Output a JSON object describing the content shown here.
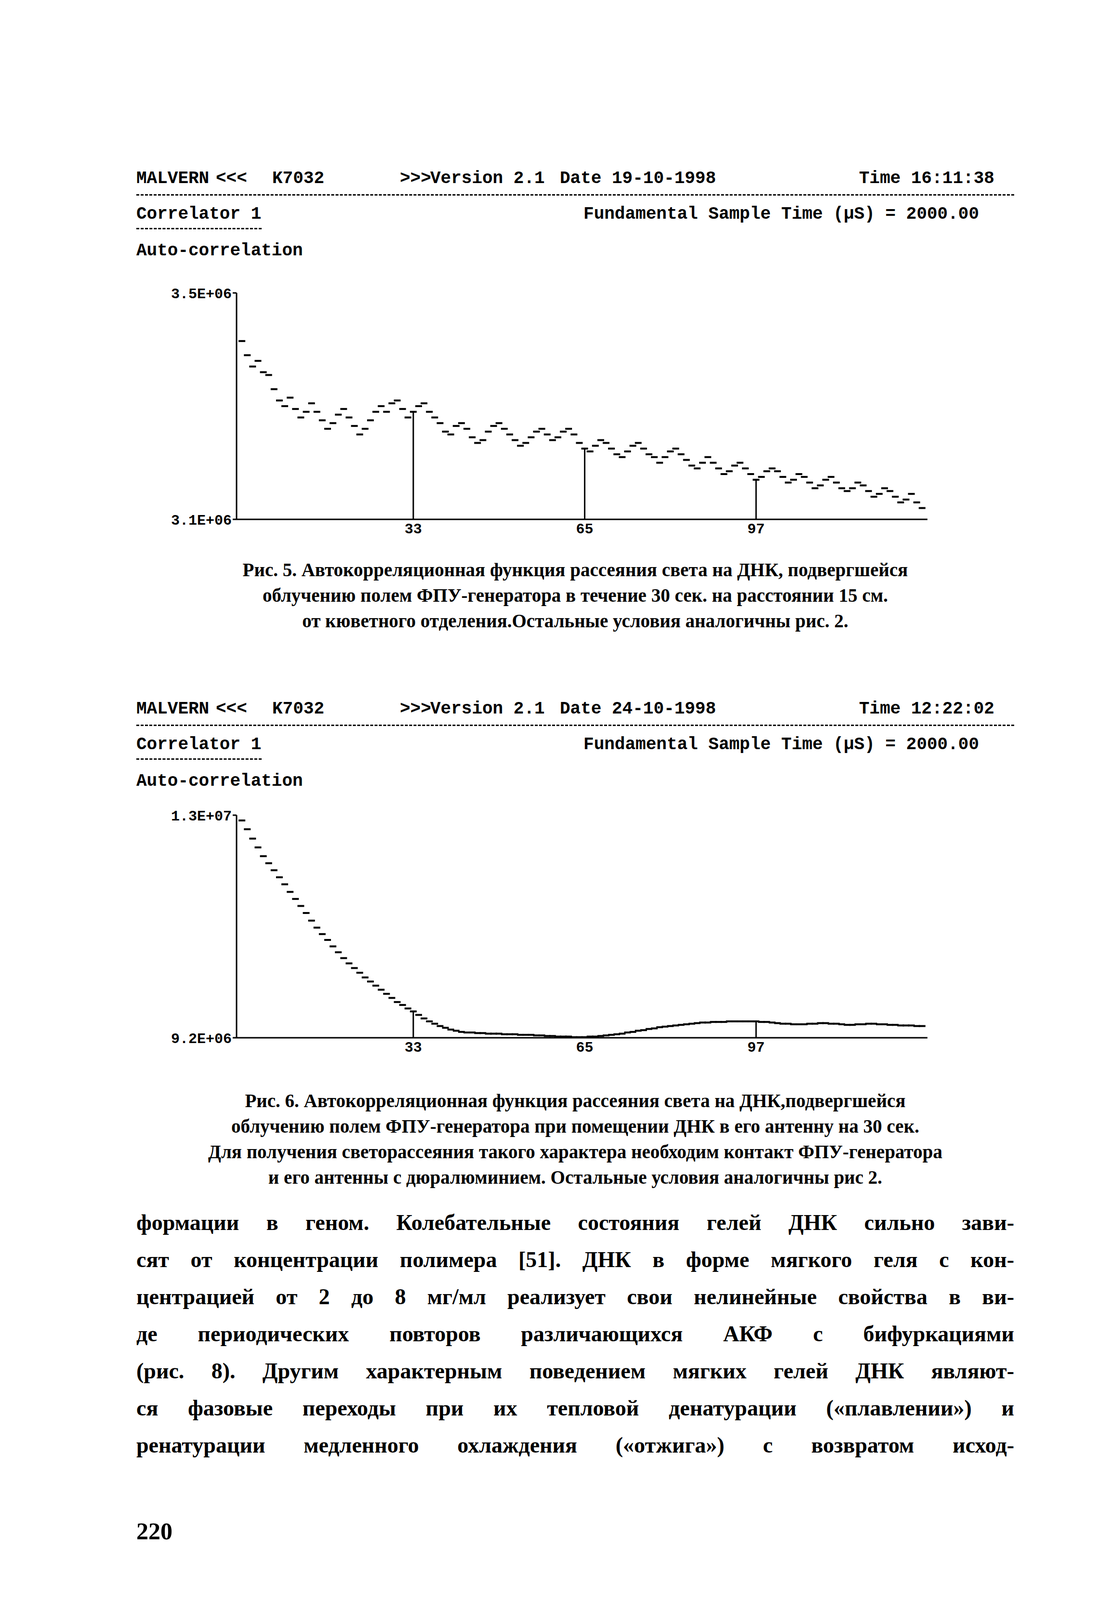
{
  "chart_data": [
    {
      "type": "line",
      "header": {
        "program": "MALVERN",
        "left_marks": "<<<",
        "instrument": "K7032",
        "right_marks": ">>>",
        "version": "Version 2.1",
        "date": "Date 19-10-1998",
        "time": "Time 16:11:38"
      },
      "correlator": "Correlator 1",
      "sample_time": "Fundamental Sample Time (µS) = 2000.00",
      "title": "Auto-correlation",
      "x": [
        1,
        2,
        3,
        4,
        5,
        6,
        7,
        8,
        9,
        10,
        11,
        12,
        13,
        14,
        15,
        16,
        17,
        18,
        19,
        20,
        21,
        22,
        23,
        24,
        25,
        26,
        27,
        28,
        29,
        30,
        31,
        32,
        33,
        34,
        35,
        36,
        37,
        38,
        39,
        40,
        41,
        42,
        43,
        44,
        45,
        46,
        47,
        48,
        49,
        50,
        51,
        52,
        53,
        54,
        55,
        56,
        57,
        58,
        59,
        60,
        61,
        62,
        63,
        64,
        65,
        66,
        67,
        68,
        69,
        70,
        71,
        72,
        73,
        74,
        75,
        76,
        77,
        78,
        79,
        80,
        81,
        82,
        83,
        84,
        85,
        86,
        87,
        88,
        89,
        90,
        91,
        92,
        93,
        94,
        95,
        96,
        97,
        98,
        99,
        100,
        101,
        102,
        103,
        104,
        105,
        106,
        107,
        108,
        109,
        110,
        111,
        112,
        113,
        114,
        115,
        116,
        117,
        118,
        119,
        120,
        121,
        122,
        123,
        124,
        125,
        126,
        127,
        128
      ],
      "values": [
        3415000,
        3390000,
        3370000,
        3380000,
        3360000,
        3355000,
        3330000,
        3310000,
        3300000,
        3315000,
        3295000,
        3280000,
        3290000,
        3305000,
        3290000,
        3275000,
        3260000,
        3270000,
        3285000,
        3295000,
        3280000,
        3265000,
        3250000,
        3260000,
        3275000,
        3290000,
        3300000,
        3290000,
        3305000,
        3310000,
        3295000,
        3280000,
        3290000,
        3300000,
        3305000,
        3290000,
        3280000,
        3270000,
        3255000,
        3250000,
        3265000,
        3270000,
        3260000,
        3245000,
        3235000,
        3240000,
        3255000,
        3265000,
        3270000,
        3260000,
        3250000,
        3240000,
        3230000,
        3235000,
        3245000,
        3255000,
        3260000,
        3250000,
        3240000,
        3245000,
        3255000,
        3260000,
        3250000,
        3235000,
        3225000,
        3220000,
        3230000,
        3240000,
        3235000,
        3225000,
        3215000,
        3210000,
        3220000,
        3230000,
        3235000,
        3225000,
        3215000,
        3210000,
        3200000,
        3210000,
        3220000,
        3225000,
        3215000,
        3205000,
        3195000,
        3190000,
        3200000,
        3210000,
        3200000,
        3190000,
        3180000,
        3185000,
        3195000,
        3200000,
        3190000,
        3180000,
        3170000,
        3175000,
        3185000,
        3190000,
        3185000,
        3175000,
        3165000,
        3170000,
        3180000,
        3175000,
        3165000,
        3155000,
        3160000,
        3170000,
        3175000,
        3165000,
        3155000,
        3150000,
        3155000,
        3165000,
        3160000,
        3150000,
        3140000,
        3145000,
        3155000,
        3150000,
        3140000,
        3130000,
        3135000,
        3145000,
        3130000,
        3120000
      ],
      "xlim": [
        0,
        129
      ],
      "xticks": [
        33,
        65,
        97
      ],
      "ylim": [
        3100000,
        3500000
      ],
      "yticks": [
        {
          "value": 3100000,
          "label": "3.1E+06"
        },
        {
          "value": 3500000,
          "label": "3.5E+06"
        }
      ],
      "marker": "dash",
      "line_style": "none",
      "color": "#000000",
      "grid": false,
      "caption": [
        "Рис. 5. Автокорреляционная функция рассеяния света на ДНК, подвергшейся",
        "облучению полем ФПУ-генератора в течение 30 сек. на расстоянии 15 см.",
        "от кюветного отделения.Остальные условия аналогичны рис. 2."
      ]
    },
    {
      "type": "line",
      "header": {
        "program": "MALVERN",
        "left_marks": "<<<",
        "instrument": "K7032",
        "right_marks": ">>>",
        "version": "Version 2.1",
        "date": "Date 24-10-1998",
        "time": "Time 12:22:02"
      },
      "correlator": "Correlator 1",
      "sample_time": "Fundamental Sample Time (µS) = 2000.00",
      "title": "Auto-correlation",
      "x": [
        1,
        2,
        3,
        4,
        5,
        6,
        7,
        8,
        9,
        10,
        11,
        12,
        13,
        14,
        15,
        16,
        17,
        18,
        19,
        20,
        21,
        22,
        23,
        24,
        25,
        26,
        27,
        28,
        29,
        30,
        31,
        32,
        33,
        34,
        35,
        36,
        37,
        38,
        39,
        40,
        41,
        42,
        43,
        44,
        45,
        46,
        47,
        48,
        49,
        50,
        51,
        52,
        53,
        54,
        55,
        56,
        57,
        58,
        59,
        60,
        61,
        62,
        63,
        64,
        65,
        66,
        67,
        68,
        69,
        70,
        71,
        72,
        73,
        74,
        75,
        76,
        77,
        78,
        79,
        80,
        81,
        82,
        83,
        84,
        85,
        86,
        87,
        88,
        89,
        90,
        91,
        92,
        93,
        94,
        95,
        96,
        97,
        98,
        99,
        100,
        101,
        102,
        103,
        104,
        105,
        106,
        107,
        108,
        109,
        110,
        111,
        112,
        113,
        114,
        115,
        116,
        117,
        118,
        119,
        120,
        121,
        122,
        123,
        124,
        125,
        126,
        127,
        128
      ],
      "values": [
        12910000,
        12760000,
        12600000,
        12450000,
        12300000,
        12180000,
        12060000,
        11940000,
        11820000,
        11690000,
        11570000,
        11450000,
        11330000,
        11200000,
        11080000,
        10970000,
        10870000,
        10760000,
        10660000,
        10560000,
        10470000,
        10390000,
        10310000,
        10230000,
        10160000,
        10090000,
        10020000,
        9950000,
        9880000,
        9810000,
        9760000,
        9700000,
        9650000,
        9590000,
        9530000,
        9480000,
        9440000,
        9400000,
        9370000,
        9340000,
        9320000,
        9300000,
        9290000,
        9290000,
        9280000,
        9280000,
        9270000,
        9270000,
        9270000,
        9260000,
        9260000,
        9260000,
        9250000,
        9250000,
        9250000,
        9240000,
        9240000,
        9230000,
        9230000,
        9220000,
        9220000,
        9220000,
        9210000,
        9210000,
        9210000,
        9220000,
        9220000,
        9230000,
        9240000,
        9250000,
        9260000,
        9270000,
        9290000,
        9300000,
        9320000,
        9330000,
        9350000,
        9360000,
        9380000,
        9390000,
        9400000,
        9410000,
        9420000,
        9430000,
        9440000,
        9450000,
        9460000,
        9460000,
        9470000,
        9470000,
        9470000,
        9480000,
        9480000,
        9480000,
        9480000,
        9480000,
        9480000,
        9470000,
        9470000,
        9460000,
        9450000,
        9440000,
        9440000,
        9430000,
        9430000,
        9430000,
        9440000,
        9440000,
        9450000,
        9450000,
        9440000,
        9440000,
        9430000,
        9420000,
        9420000,
        9430000,
        9430000,
        9440000,
        9440000,
        9430000,
        9430000,
        9420000,
        9420000,
        9410000,
        9410000,
        9410000,
        9400000,
        9400000
      ],
      "xlim": [
        0,
        129
      ],
      "xticks": [
        33,
        65,
        97
      ],
      "ylim": [
        9200000,
        13000000
      ],
      "yticks": [
        {
          "value": 9200000,
          "label": "9.2E+06"
        },
        {
          "value": 13000000,
          "label": "1.3E+07"
        }
      ],
      "marker": "dash",
      "line_style": "none",
      "color": "#000000",
      "grid": false,
      "caption": [
        "Рис. 6. Автокорреляционная функция рассеяния света на ДНК,подвергшейся",
        "облучению полем ФПУ-генератора при помещении ДНК в его антенну на 30 сек.",
        "Для получения светорассеяния такого характера необходим контакт ФПУ-генератора",
        "и его антенны с дюралюминием. Остальные условия аналогичны рис 2."
      ]
    }
  ],
  "body_text": [
    "формации в геном. Колебательные состояния гелей ДНК сильно зави-",
    "сят от концентрации полимера [51]. ДНК в форме мягкого геля с кон-",
    "центрацией от 2 до 8 мг/мл реализует свои нелинейные свойства в ви-",
    "де периодических повторов различающихся АКФ с бифуркациями",
    "(рис. 8). Другим характерным поведением мягких гелей ДНК являют-",
    "ся фазовые переходы при их тепловой денатурации («плавлении») и",
    "ренатурации медленного охлаждения («отжига») с возвратом исход-"
  ],
  "page_number": "220"
}
